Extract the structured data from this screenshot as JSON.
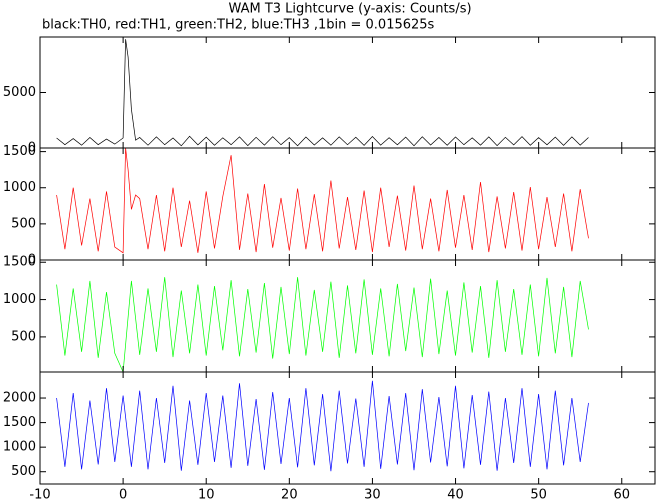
{
  "title": "WAM T3 Lightcurve (y-axis: Counts/s)",
  "subtitle": "black:TH0, red:TH1, green:TH2, blue:TH3 ,1bin = 0.015625s",
  "chart_data": [
    {
      "type": "line",
      "color": "#000000",
      "ylim": [
        0,
        10000
      ],
      "yticks": [
        0,
        5000
      ],
      "x": [
        -8,
        -7,
        -6,
        -5,
        -4,
        -3,
        -2,
        -1,
        0,
        0.3,
        0.6,
        1,
        1.5,
        2,
        3,
        4,
        5,
        6,
        7,
        8,
        9,
        10,
        11,
        12,
        13,
        14,
        15,
        16,
        17,
        18,
        19,
        20,
        21,
        22,
        23,
        24,
        25,
        26,
        27,
        28,
        29,
        30,
        31,
        32,
        33,
        34,
        35,
        36,
        37,
        38,
        39,
        40,
        41,
        42,
        43,
        44,
        45,
        46,
        47,
        48,
        49,
        50,
        51,
        52,
        53,
        54,
        55,
        56
      ],
      "values": [
        900,
        300,
        850,
        250,
        950,
        300,
        800,
        350,
        900,
        9800,
        8200,
        3500,
        700,
        950,
        250,
        1000,
        300,
        900,
        200,
        1050,
        280,
        980,
        240,
        920,
        300,
        1000,
        220,
        960,
        260,
        1020,
        300,
        940,
        210,
        990,
        270,
        910,
        250,
        1000,
        300,
        970,
        230,
        1040,
        260,
        930,
        290,
        980,
        210,
        1010,
        270,
        950,
        240,
        990,
        300,
        920,
        260,
        1000,
        220,
        960,
        280,
        1030,
        250,
        940,
        290,
        980,
        230,
        1000,
        260,
        950
      ]
    },
    {
      "type": "line",
      "color": "#ff0000",
      "ylim": [
        0,
        1550
      ],
      "yticks": [
        0,
        500,
        1000,
        1500
      ],
      "x": [
        -8,
        -7,
        -6,
        -5,
        -4,
        -3,
        -2,
        -1,
        0,
        0.3,
        0.6,
        1,
        1.5,
        2,
        3,
        4,
        5,
        6,
        7,
        8,
        9,
        10,
        11,
        12,
        13,
        14,
        15,
        16,
        17,
        18,
        19,
        20,
        21,
        22,
        23,
        24,
        25,
        26,
        27,
        28,
        29,
        30,
        31,
        32,
        33,
        34,
        35,
        36,
        37,
        38,
        39,
        40,
        41,
        42,
        43,
        44,
        45,
        46,
        47,
        48,
        49,
        50,
        51,
        52,
        53,
        54,
        55,
        56
      ],
      "values": [
        900,
        150,
        1000,
        200,
        850,
        120,
        950,
        180,
        100,
        1550,
        1250,
        700,
        900,
        850,
        150,
        900,
        120,
        1000,
        180,
        820,
        100,
        950,
        160,
        880,
        1450,
        140,
        920,
        110,
        1050,
        170,
        860,
        130,
        990,
        150,
        910,
        120,
        1100,
        160,
        870,
        140,
        960,
        110,
        1000,
        180,
        890,
        130,
        1030,
        150,
        850,
        120,
        970,
        170,
        900,
        140,
        1080,
        110,
        880,
        160,
        940,
        130,
        1010,
        150,
        870,
        180,
        920,
        120,
        980,
        300
      ]
    },
    {
      "type": "line",
      "color": "#00ff00",
      "ylim": [
        30,
        1530
      ],
      "yticks": [
        500,
        1000,
        1500
      ],
      "x": [
        -8,
        -7,
        -6,
        -5,
        -4,
        -3,
        -2,
        -1,
        0,
        1,
        2,
        3,
        4,
        5,
        6,
        7,
        8,
        9,
        10,
        11,
        12,
        13,
        14,
        15,
        16,
        17,
        18,
        19,
        20,
        21,
        22,
        23,
        24,
        25,
        26,
        27,
        28,
        29,
        30,
        31,
        32,
        33,
        34,
        35,
        36,
        37,
        38,
        39,
        40,
        41,
        42,
        43,
        44,
        45,
        46,
        47,
        48,
        49,
        50,
        51,
        52,
        53,
        54,
        55,
        56
      ],
      "values": [
        1200,
        250,
        1150,
        300,
        1250,
        220,
        1100,
        280,
        30,
        1250,
        260,
        1150,
        300,
        1300,
        230,
        1120,
        280,
        1200,
        250,
        1180,
        320,
        1260,
        240,
        1140,
        290,
        1220,
        210,
        1170,
        270,
        1300,
        250,
        1130,
        300,
        1240,
        220,
        1190,
        280,
        1270,
        260,
        1150,
        240,
        1210,
        310,
        1160,
        230,
        1280,
        270,
        1120,
        250,
        1230,
        290,
        1180,
        220,
        1260,
        300,
        1140,
        260,
        1200,
        240,
        1290,
        280,
        1170,
        230,
        1250,
        600
      ]
    },
    {
      "type": "line",
      "color": "#0000ff",
      "ylim": [
        250,
        2530
      ],
      "yticks": [
        500,
        1000,
        1500,
        2000
      ],
      "xlim": [
        -10,
        64
      ],
      "xticks": [
        -10,
        0,
        10,
        20,
        30,
        40,
        50,
        60
      ],
      "x": [
        -8,
        -7,
        -6,
        -5,
        -4,
        -3,
        -2,
        -1,
        0,
        1,
        2,
        3,
        4,
        5,
        6,
        7,
        8,
        9,
        10,
        11,
        12,
        13,
        14,
        15,
        16,
        17,
        18,
        19,
        20,
        21,
        22,
        23,
        24,
        25,
        26,
        27,
        28,
        29,
        30,
        31,
        32,
        33,
        34,
        35,
        36,
        37,
        38,
        39,
        40,
        41,
        42,
        43,
        44,
        45,
        46,
        47,
        48,
        49,
        50,
        51,
        52,
        53,
        54,
        55,
        56
      ],
      "values": [
        2000,
        600,
        2100,
        550,
        1950,
        650,
        2200,
        700,
        2050,
        600,
        2150,
        550,
        2000,
        680,
        2250,
        520,
        1950,
        640,
        2100,
        700,
        2050,
        580,
        2300,
        620,
        1980,
        540,
        2120,
        660,
        2000,
        590,
        2200,
        630,
        2080,
        510,
        2150,
        670,
        1990,
        600,
        2350,
        560,
        2040,
        650,
        2100,
        530,
        2180,
        690,
        2020,
        610,
        2250,
        570,
        2060,
        640,
        2130,
        520,
        2000,
        680,
        2200,
        600,
        2080,
        550,
        2150,
        630,
        2000,
        700,
        1900
      ]
    }
  ]
}
